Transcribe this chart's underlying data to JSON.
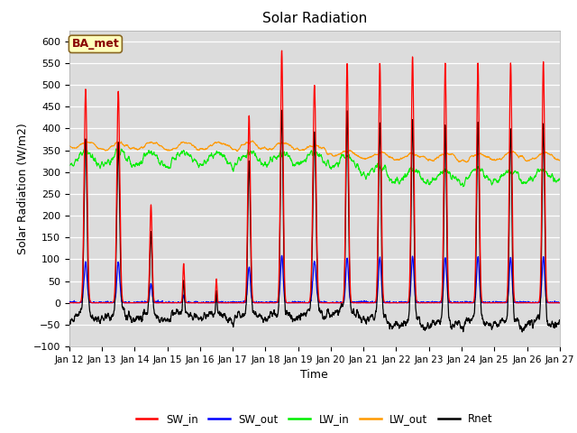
{
  "title": "Solar Radiation",
  "xlabel": "Time",
  "ylabel": "Solar Radiation (W/m2)",
  "ylim": [
    -100,
    625
  ],
  "yticks": [
    -100,
    -50,
    0,
    50,
    100,
    150,
    200,
    250,
    300,
    350,
    400,
    450,
    500,
    550,
    600
  ],
  "x_tick_labels": [
    "Jan 12",
    "Jan 13",
    "Jan 14",
    "Jan 15",
    "Jan 16",
    "Jan 17",
    "Jan 18",
    "Jan 19",
    "Jan 20",
    "Jan 21",
    "Jan 22",
    "Jan 23",
    "Jan 24",
    "Jan 25",
    "Jan 26",
    "Jan 27"
  ],
  "colors": {
    "SW_in": "#ff0000",
    "SW_out": "#0000ff",
    "LW_in": "#00ee00",
    "LW_out": "#ff9900",
    "Rnet": "#000000"
  },
  "bg_color": "#dcdcdc",
  "annotation_text": "BA_met",
  "annotation_facecolor": "#ffffbb",
  "annotation_edgecolor": "#886622"
}
